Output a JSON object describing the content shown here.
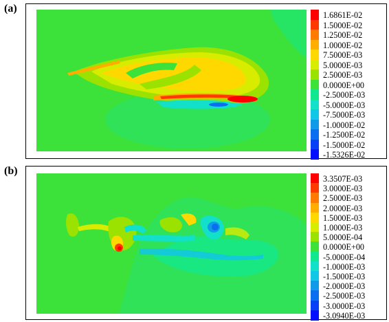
{
  "panels": [
    {
      "label": "(a)",
      "legend": {
        "values": [
          "1.6861E-02",
          "1.5000E-02",
          "1.2500E-02",
          "1.0000E-02",
          "7.5000E-03",
          "5.0000E-03",
          "2.5000E-03",
          "0.0000E+00",
          "-2.5000E-03",
          "-5.0000E-03",
          "-7.5000E-03",
          "-1.0000E-02",
          "-1.2500E-02",
          "-1.5000E-02",
          "-1.5326E-02"
        ],
        "colors": [
          "#ff0000",
          "#ff3a00",
          "#ff7a00",
          "#ffae00",
          "#ffd800",
          "#d8ec00",
          "#9ce200",
          "#3ce23a",
          "#10e890",
          "#12e0c8",
          "#12c6e6",
          "#109ae8",
          "#0a6ef0",
          "#0840f8",
          "#0010ff"
        ]
      }
    },
    {
      "label": "(b)",
      "legend": {
        "values": [
          "3.3507E-03",
          "3.0000E-03",
          "2.5000E-03",
          "2.0000E-03",
          "1.5000E-03",
          "1.0000E-03",
          "5.0000E-04",
          "0.0000E+00",
          "-5.0000E-04",
          "-1.0000E-03",
          "-1.5000E-03",
          "-2.0000E-03",
          "-2.5000E-03",
          "-3.0000E-03",
          "-3.0940E-03"
        ],
        "colors": [
          "#ff0000",
          "#ff3a00",
          "#ff7a00",
          "#ffae00",
          "#ffd800",
          "#d8ec00",
          "#9ce200",
          "#3ce23a",
          "#10e890",
          "#12e0c8",
          "#12c6e6",
          "#109ae8",
          "#0a6ef0",
          "#0840f8",
          "#0010ff"
        ]
      }
    }
  ]
}
